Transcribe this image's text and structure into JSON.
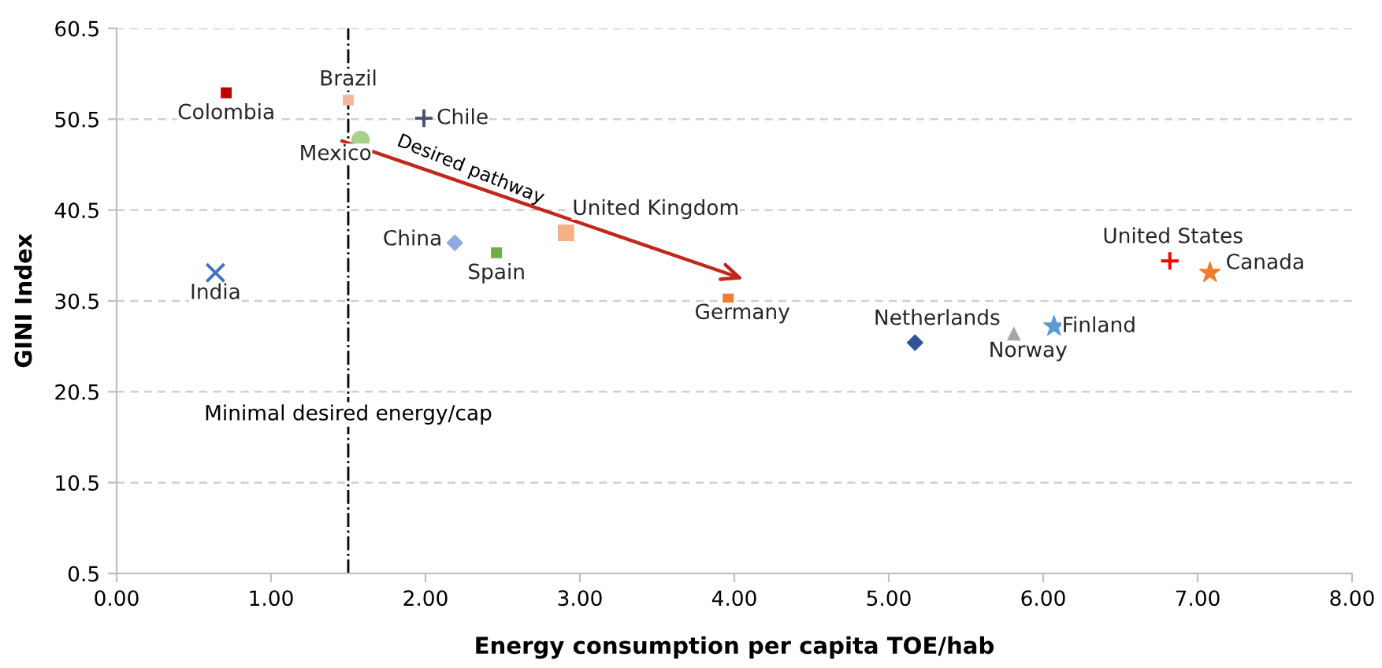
{
  "chart_data": {
    "type": "scatter",
    "xlabel": "Energy consumption per capita TOE/hab",
    "ylabel": "GINI Index",
    "xlim": [
      0,
      8
    ],
    "ylim": [
      0.5,
      60.5
    ],
    "xticks": [
      {
        "value": 0,
        "label": "0.00"
      },
      {
        "value": 1,
        "label": "1.00"
      },
      {
        "value": 2,
        "label": "2.00"
      },
      {
        "value": 3,
        "label": "3.00"
      },
      {
        "value": 4,
        "label": "4.00"
      },
      {
        "value": 5,
        "label": "5.00"
      },
      {
        "value": 6,
        "label": "6.00"
      },
      {
        "value": 7,
        "label": "7.00"
      },
      {
        "value": 8,
        "label": "8.00"
      }
    ],
    "yticks": [
      0.5,
      10.5,
      20.5,
      30.5,
      40.5,
      50.5,
      60.5
    ],
    "grid": "y",
    "legend": false,
    "ref_lines": [
      {
        "axis": "x",
        "value": 1.5,
        "label": "Minimal desired energy/cap",
        "color": "#000000",
        "line_style": "dashdot"
      }
    ],
    "annotations": [
      "Desired pathway"
    ],
    "series": [
      {
        "name": "Colombia",
        "color": "#c00000",
        "marker": "square",
        "x": [
          0.71
        ],
        "values": [
          53.4
        ]
      },
      {
        "name": "Brazil",
        "color": "#f4b8a0",
        "marker": "square",
        "x": [
          1.5
        ],
        "values": [
          52.6
        ]
      },
      {
        "name": "Chile",
        "color": "#44546a",
        "marker": "plus",
        "x": [
          1.99
        ],
        "values": [
          50.6
        ]
      },
      {
        "name": "Mexico",
        "color": "#a9d18e",
        "marker": "circle",
        "x": [
          1.58
        ],
        "values": [
          48.2
        ]
      },
      {
        "name": "China",
        "color": "#8faadc",
        "marker": "diamond",
        "x": [
          2.19
        ],
        "values": [
          36.9
        ]
      },
      {
        "name": "Spain",
        "color": "#70ad47",
        "marker": "square",
        "x": [
          2.46
        ],
        "values": [
          35.8
        ]
      },
      {
        "name": "United Kingdom",
        "color": "#f4b183",
        "marker": "square",
        "x": [
          2.91
        ],
        "values": [
          38.0
        ]
      },
      {
        "name": "India",
        "color": "#4472c4",
        "marker": "cross",
        "x": [
          0.64
        ],
        "values": [
          33.6
        ]
      },
      {
        "name": "Germany",
        "color": "#ed7d31",
        "marker": "square",
        "x": [
          3.96
        ],
        "values": [
          30.7
        ]
      },
      {
        "name": "Netherlands",
        "color": "#2f5597",
        "marker": "diamond",
        "x": [
          5.17
        ],
        "values": [
          25.9
        ]
      },
      {
        "name": "Norway",
        "color": "#a5a5a5",
        "marker": "triangle",
        "x": [
          5.81
        ],
        "values": [
          26.7
        ]
      },
      {
        "name": "Finland",
        "color": "#5b9bd5",
        "marker": "star",
        "x": [
          6.07
        ],
        "values": [
          27.7
        ]
      },
      {
        "name": "United States",
        "color": "#ff0000",
        "marker": "plus",
        "x": [
          6.82
        ],
        "values": [
          34.9
        ]
      },
      {
        "name": "Canada",
        "color": "#ed7d31",
        "marker": "star",
        "x": [
          7.08
        ],
        "values": [
          33.6
        ]
      },
      {
        "type": "line",
        "color": "#c0281c",
        "x": [
          1.46,
          4.06
        ],
        "values": [
          48.1,
          32.9
        ]
      }
    ]
  }
}
